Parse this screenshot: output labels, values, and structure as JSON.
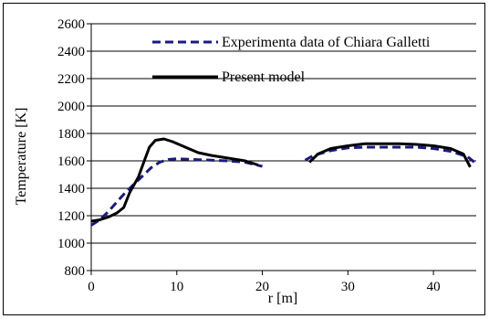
{
  "chart_data": {
    "type": "line",
    "xlabel": "r [m]",
    "ylabel": "Temperature [K]",
    "xlim": [
      0,
      45
    ],
    "ylim": [
      800,
      2600
    ],
    "x_ticks": [
      0,
      10,
      20,
      30,
      40
    ],
    "y_ticks": [
      800,
      1000,
      1200,
      1400,
      1600,
      1800,
      2000,
      2200,
      2400,
      2600
    ],
    "grid": "horizontal",
    "legend_position": "top-right",
    "series": [
      {
        "name": "Experimenta data of Chiara Galletti",
        "style": "dashed",
        "color": "#1a1a80",
        "segments": [
          [
            [
              0,
              1130
            ],
            [
              1,
              1170
            ],
            [
              2,
              1230
            ],
            [
              3,
              1300
            ],
            [
              4,
              1370
            ],
            [
              5,
              1430
            ],
            [
              6,
              1490
            ],
            [
              7,
              1550
            ],
            [
              8,
              1590
            ],
            [
              9,
              1610
            ],
            [
              10,
              1615
            ],
            [
              12,
              1610
            ],
            [
              14,
              1605
            ],
            [
              16,
              1600
            ],
            [
              18,
              1590
            ],
            [
              20,
              1560
            ]
          ],
          [
            [
              25,
              1605
            ],
            [
              26,
              1640
            ],
            [
              28,
              1675
            ],
            [
              30,
              1695
            ],
            [
              32,
              1700
            ],
            [
              34,
              1700
            ],
            [
              36,
              1700
            ],
            [
              38,
              1700
            ],
            [
              40,
              1690
            ],
            [
              42,
              1670
            ],
            [
              44,
              1630
            ],
            [
              45,
              1580
            ]
          ]
        ]
      },
      {
        "name": "Present model",
        "style": "solid",
        "color": "#000000",
        "segments": [
          [
            [
              0,
              1160
            ],
            [
              1,
              1170
            ],
            [
              2,
              1190
            ],
            [
              3,
              1220
            ],
            [
              3.8,
              1260
            ],
            [
              4.5,
              1370
            ],
            [
              5.5,
              1480
            ],
            [
              6.2,
              1600
            ],
            [
              6.8,
              1700
            ],
            [
              7.5,
              1750
            ],
            [
              8.5,
              1760
            ],
            [
              9.5,
              1740
            ],
            [
              11,
              1700
            ],
            [
              12.5,
              1660
            ],
            [
              14,
              1640
            ],
            [
              16,
              1620
            ],
            [
              18,
              1600
            ],
            [
              19.5,
              1570
            ]
          ],
          [
            [
              25.5,
              1590
            ],
            [
              26.5,
              1650
            ],
            [
              28,
              1690
            ],
            [
              30,
              1710
            ],
            [
              32,
              1725
            ],
            [
              34,
              1725
            ],
            [
              36,
              1725
            ],
            [
              38,
              1720
            ],
            [
              40,
              1710
            ],
            [
              42,
              1690
            ],
            [
              43.5,
              1650
            ],
            [
              44.3,
              1555
            ]
          ]
        ]
      }
    ]
  }
}
